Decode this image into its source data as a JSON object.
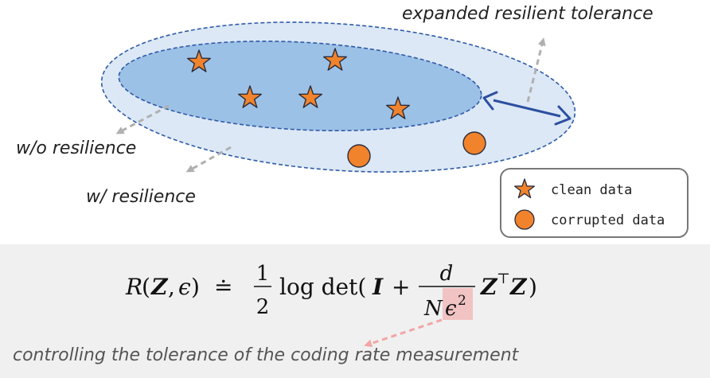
{
  "labels": {
    "expanded": "expanded resilient tolerance",
    "without": "w/o resilience",
    "with": "w/ resilience"
  },
  "legend": {
    "clean": "clean data",
    "corrupted": "corrupted data"
  },
  "formula": {
    "R": "R",
    "paren_open": "(",
    "Z": "Z",
    "comma": ",",
    "eps": "ϵ",
    "paren_close": ")",
    "eqdef": "≐",
    "one": "1",
    "two": "2",
    "logdet": "log det(",
    "I": "I",
    "plus": "+",
    "d": "d",
    "N": "N",
    "eps2": "ϵ",
    "sq": "2",
    "Z1": "Z",
    "top": "⊤",
    "Z2": "Z",
    "close": ")"
  },
  "caption": "controlling the tolerance of the coding rate measurement",
  "colors": {
    "outer_fill": "#dce8f6",
    "inner_fill": "#9cc1e6",
    "ellipse_stroke": "#2f5aa8",
    "marker": "#f0832c",
    "arrow_gray": "#b0b0b0",
    "arrow_blue": "#2c4fa0",
    "panel": "#f0f0f0",
    "highlight": "#f1c3c3",
    "caption_arrow": "#f2a5a5"
  }
}
